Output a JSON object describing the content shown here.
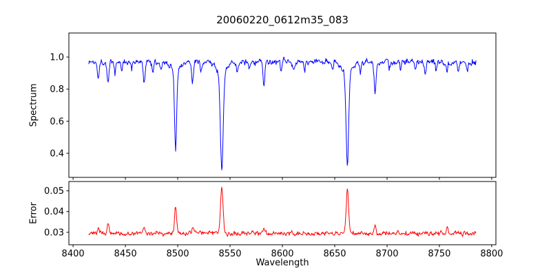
{
  "title": "20060220_0612m35_083",
  "axes": {
    "xlabel": "Wavelength",
    "xlim": [
      8396,
      8804
    ],
    "x_ticks": [
      8400,
      8450,
      8500,
      8550,
      8600,
      8650,
      8700,
      8750,
      8800
    ],
    "top": {
      "ylabel": "Spectrum",
      "ylim": [
        0.25,
        1.15
      ],
      "y_ticks": [
        0.4,
        0.6,
        0.8,
        1.0
      ],
      "y_tick_labels": [
        "0.4",
        "0.6",
        "0.8",
        "1.0"
      ]
    },
    "bottom": {
      "ylabel": "Error",
      "ylim": [
        0.024,
        0.0545
      ],
      "y_ticks": [
        0.03,
        0.04,
        0.05
      ],
      "y_tick_labels": [
        "0.03",
        "0.04",
        "0.05"
      ]
    }
  },
  "chart_data": {
    "type": "line",
    "title": "20060220_0612m35_083",
    "xlabel": "Wavelength",
    "x_start": 8415,
    "x_end": 8785,
    "x_step": 0.5,
    "series": [
      {
        "name": "spectrum",
        "color": "#0000ff",
        "ylabel": "Spectrum",
        "continuum": 0.97,
        "noise_amp": 0.024,
        "clip_max": 1.055,
        "absorption_lines": [
          {
            "center": 8424.0,
            "depth": 0.09,
            "sigma": 0.8
          },
          {
            "center": 8433.5,
            "depth": 0.13,
            "sigma": 0.9
          },
          {
            "center": 8440.0,
            "depth": 0.07,
            "sigma": 0.7
          },
          {
            "center": 8446.5,
            "depth": 0.06,
            "sigma": 0.7
          },
          {
            "center": 8456.0,
            "depth": 0.05,
            "sigma": 0.7
          },
          {
            "center": 8468.0,
            "depth": 0.14,
            "sigma": 0.9
          },
          {
            "center": 8476.0,
            "depth": 0.07,
            "sigma": 0.7
          },
          {
            "center": 8484.0,
            "depth": 0.05,
            "sigma": 0.7
          },
          {
            "center": 8498.0,
            "depth": 0.49,
            "sigma": 1.0,
            "wing_depth": 0.055,
            "wing_sigma": 4.0
          },
          {
            "center": 8514.1,
            "depth": 0.13,
            "sigma": 0.9
          },
          {
            "center": 8522.0,
            "depth": 0.06,
            "sigma": 0.7
          },
          {
            "center": 8542.1,
            "depth": 0.6,
            "sigma": 1.3,
            "wing_depth": 0.075,
            "wing_sigma": 5.0
          },
          {
            "center": 8556.8,
            "depth": 0.06,
            "sigma": 0.7
          },
          {
            "center": 8568.0,
            "depth": 0.05,
            "sigma": 0.7
          },
          {
            "center": 8582.3,
            "depth": 0.16,
            "sigma": 0.9
          },
          {
            "center": 8598.8,
            "depth": 0.07,
            "sigma": 0.7
          },
          {
            "center": 8611.0,
            "depth": 0.05,
            "sigma": 0.7
          },
          {
            "center": 8621.2,
            "depth": 0.07,
            "sigma": 0.7
          },
          {
            "center": 8648.0,
            "depth": 0.06,
            "sigma": 0.7
          },
          {
            "center": 8662.1,
            "depth": 0.57,
            "sigma": 1.2,
            "wing_depth": 0.065,
            "wing_sigma": 4.5
          },
          {
            "center": 8674.5,
            "depth": 0.07,
            "sigma": 0.7
          },
          {
            "center": 8688.6,
            "depth": 0.2,
            "sigma": 0.9
          },
          {
            "center": 8702.0,
            "depth": 0.05,
            "sigma": 0.7
          },
          {
            "center": 8713.0,
            "depth": 0.06,
            "sigma": 0.7
          },
          {
            "center": 8727.0,
            "depth": 0.05,
            "sigma": 0.7
          },
          {
            "center": 8736.5,
            "depth": 0.06,
            "sigma": 0.7
          },
          {
            "center": 8747.0,
            "depth": 0.05,
            "sigma": 0.7
          },
          {
            "center": 8757.5,
            "depth": 0.06,
            "sigma": 0.7
          },
          {
            "center": 8768.0,
            "depth": 0.05,
            "sigma": 0.7
          },
          {
            "center": 8776.5,
            "depth": 0.05,
            "sigma": 0.7
          }
        ]
      },
      {
        "name": "error",
        "color": "#ff0000",
        "ylabel": "Error",
        "baseline": 0.0295,
        "noise_amp": 0.0011,
        "peaks": [
          {
            "center": 8424.0,
            "height": 0.003,
            "sigma": 0.8
          },
          {
            "center": 8433.5,
            "height": 0.004,
            "sigma": 0.9
          },
          {
            "center": 8468.0,
            "height": 0.0025,
            "sigma": 0.9
          },
          {
            "center": 8498.0,
            "height": 0.013,
            "sigma": 1.0
          },
          {
            "center": 8514.1,
            "height": 0.0025,
            "sigma": 0.9
          },
          {
            "center": 8542.1,
            "height": 0.0215,
            "sigma": 1.2
          },
          {
            "center": 8582.3,
            "height": 0.0025,
            "sigma": 0.9
          },
          {
            "center": 8662.1,
            "height": 0.0215,
            "sigma": 1.1
          },
          {
            "center": 8688.6,
            "height": 0.0045,
            "sigma": 0.9
          },
          {
            "center": 8757.5,
            "height": 0.003,
            "sigma": 0.8
          }
        ]
      }
    ]
  }
}
